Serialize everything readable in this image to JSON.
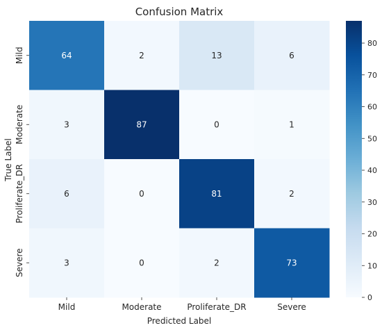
{
  "chart_data": {
    "type": "heatmap",
    "title": "Confusion Matrix",
    "xlabel": "Predicted Label",
    "ylabel": "True Label",
    "x_categories": [
      "Mild",
      "Moderate",
      "Proliferate_DR",
      "Severe"
    ],
    "y_categories": [
      "Mild",
      "Moderate",
      "Proliferate_DR",
      "Severe"
    ],
    "values": [
      [
        64,
        2,
        13,
        6
      ],
      [
        3,
        87,
        0,
        1
      ],
      [
        6,
        0,
        81,
        2
      ],
      [
        3,
        0,
        2,
        73
      ]
    ],
    "colorbar": {
      "min": 0,
      "max": 87,
      "ticks": [
        0,
        10,
        20,
        30,
        40,
        50,
        60,
        70,
        80
      ]
    },
    "colormap": "Blues",
    "colors": {
      "low": "#f7fbff",
      "high": "#08306b"
    },
    "grid": false
  }
}
